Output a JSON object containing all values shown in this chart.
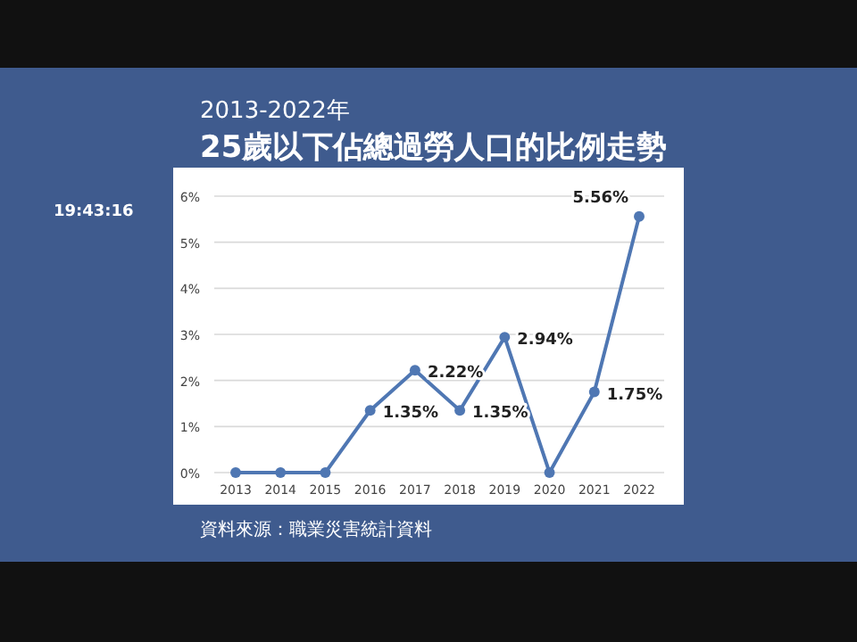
{
  "chart_data": {
    "type": "line",
    "title": "25歲以下佔總過勞人口的比例走勢",
    "subtitle": "2013-2022年",
    "categories": [
      "2013",
      "2014",
      "2015",
      "2016",
      "2017",
      "2018",
      "2019",
      "2020",
      "2021",
      "2022"
    ],
    "series": [
      {
        "color": "#4f77b3",
        "values": [
          0,
          0,
          0,
          1.35,
          2.22,
          1.35,
          2.94,
          0,
          1.75,
          5.56
        ],
        "value_labels": [
          null,
          null,
          null,
          "1.35%",
          "2.22%",
          "1.35%",
          "2.94%",
          null,
          "1.75%",
          "5.56%"
        ]
      }
    ],
    "ylim": [
      0,
      6
    ],
    "yticks": [
      {
        "value": 0,
        "label": "0%"
      },
      {
        "value": 1,
        "label": "1%"
      },
      {
        "value": 2,
        "label": "2%"
      },
      {
        "value": 3,
        "label": "3%"
      },
      {
        "value": 4,
        "label": "4%"
      },
      {
        "value": 5,
        "label": "5%"
      },
      {
        "value": 6,
        "label": "6%"
      }
    ],
    "grid": "y",
    "marker": "circle",
    "annotations": [
      "資料來源：職業災害統計資料",
      "19:43:16"
    ]
  }
}
